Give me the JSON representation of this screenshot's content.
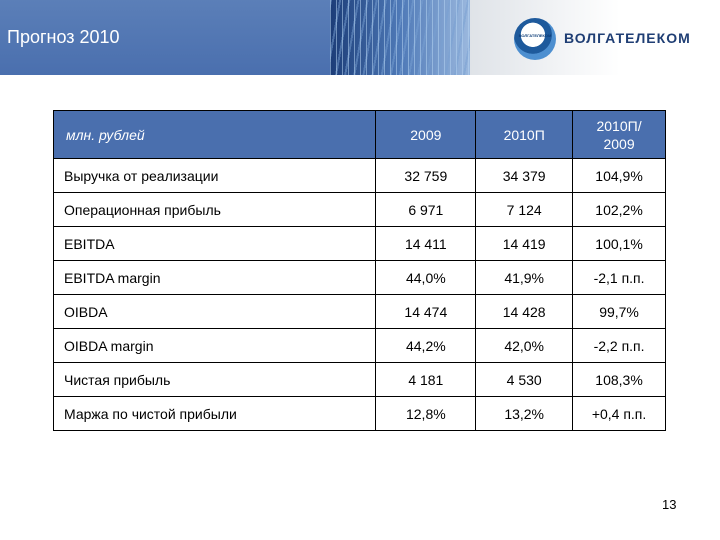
{
  "header": {
    "title": "Прогноз 2010",
    "logo_text": "ВОЛГАТЕЛЕКОМ",
    "logo_mark_text": "ВОЛГАТЕЛЕКОМ"
  },
  "table": {
    "columns": [
      "млн. рублей",
      "2009",
      "2010П",
      "2010П/\n2009"
    ],
    "rows": [
      [
        "Выручка от реализации",
        "32 759",
        "34 379",
        "104,9%"
      ],
      [
        "Операционная прибыль",
        "6 971",
        "7 124",
        "102,2%"
      ],
      [
        "EBITDA",
        "14 411",
        "14 419",
        "100,1%"
      ],
      [
        "EBITDA margin",
        "44,0%",
        "41,9%",
        "-2,1 п.п."
      ],
      [
        "OIBDA",
        "14 474",
        "14 428",
        "99,7%"
      ],
      [
        "OIBDA margin",
        "44,2%",
        "42,0%",
        "-2,2 п.п."
      ],
      [
        "Чистая прибыль",
        "4 181",
        "4 530",
        "108,3%"
      ],
      [
        "Маржа по чистой прибыли",
        "12,8%",
        "13,2%",
        "+0,4 п.п."
      ]
    ]
  },
  "footer": {
    "page_number": "13"
  },
  "colors": {
    "header_blue": "#4a6fae",
    "header_text": "#ffffff",
    "logo_blue": "#1f3e74"
  }
}
